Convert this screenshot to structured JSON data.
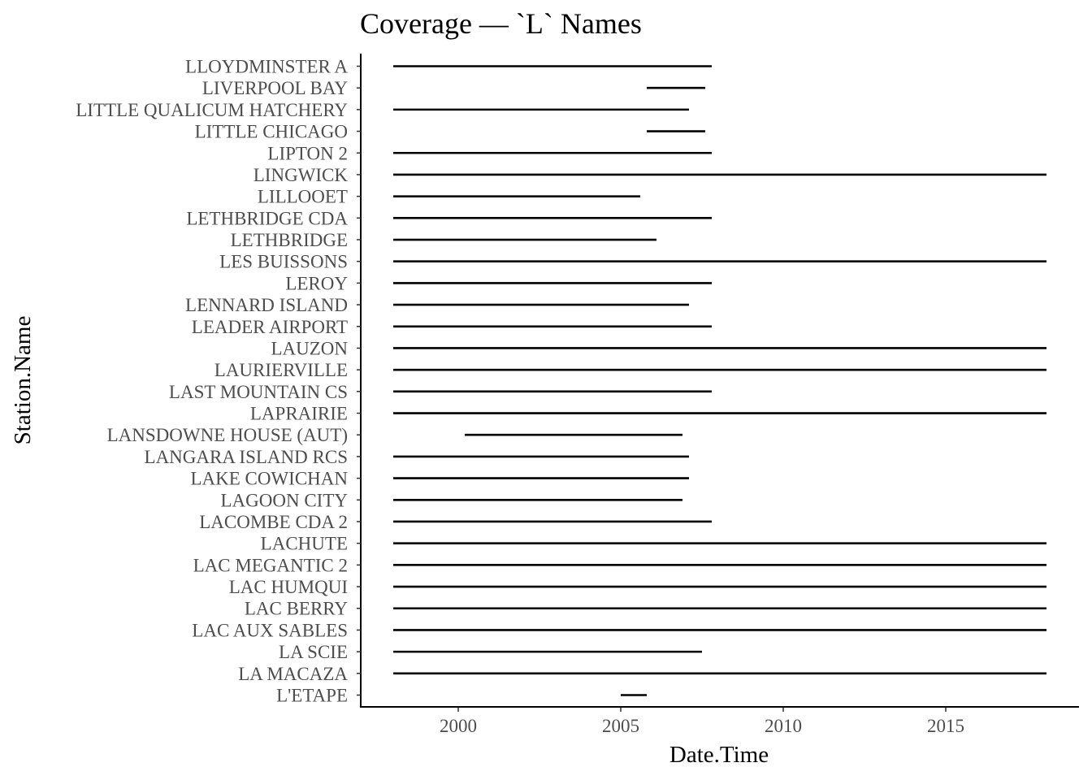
{
  "chart_data": {
    "type": "segment",
    "title": "Coverage — `L` Names",
    "xlabel": "Date.Time",
    "ylabel": "Station.Name",
    "x_ticks": [
      2000,
      2005,
      2010,
      2015
    ],
    "xlim": [
      1997.0,
      2019.1
    ],
    "grid": false,
    "legend": "none",
    "stations": [
      {
        "name": "LLOYDMINSTER A",
        "start": 1998.0,
        "end": 2007.8
      },
      {
        "name": "LIVERPOOL BAY",
        "start": 2005.8,
        "end": 2007.6
      },
      {
        "name": "LITTLE QUALICUM HATCHERY",
        "start": 1998.0,
        "end": 2007.1
      },
      {
        "name": "LITTLE CHICAGO",
        "start": 2005.8,
        "end": 2007.6
      },
      {
        "name": "LIPTON 2",
        "start": 1998.0,
        "end": 2007.8
      },
      {
        "name": "LINGWICK",
        "start": 1998.0,
        "end": 2018.1
      },
      {
        "name": "LILLOOET",
        "start": 1998.0,
        "end": 2005.6
      },
      {
        "name": "LETHBRIDGE CDA",
        "start": 1998.0,
        "end": 2007.8
      },
      {
        "name": "LETHBRIDGE",
        "start": 1998.0,
        "end": 2006.1
      },
      {
        "name": "LES BUISSONS",
        "start": 1998.0,
        "end": 2018.1
      },
      {
        "name": "LEROY",
        "start": 1998.0,
        "end": 2007.8
      },
      {
        "name": "LENNARD ISLAND",
        "start": 1998.0,
        "end": 2007.1
      },
      {
        "name": "LEADER AIRPORT",
        "start": 1998.0,
        "end": 2007.8
      },
      {
        "name": "LAUZON",
        "start": 1998.0,
        "end": 2018.1
      },
      {
        "name": "LAURIERVILLE",
        "start": 1998.0,
        "end": 2018.1
      },
      {
        "name": "LAST MOUNTAIN CS",
        "start": 1998.0,
        "end": 2007.8
      },
      {
        "name": "LAPRAIRIE",
        "start": 1998.0,
        "end": 2018.1
      },
      {
        "name": "LANSDOWNE HOUSE (AUT)",
        "start": 2000.2,
        "end": 2006.9
      },
      {
        "name": "LANGARA ISLAND RCS",
        "start": 1998.0,
        "end": 2007.1
      },
      {
        "name": "LAKE COWICHAN",
        "start": 1998.0,
        "end": 2007.1
      },
      {
        "name": "LAGOON CITY",
        "start": 1998.0,
        "end": 2006.9
      },
      {
        "name": "LACOMBE CDA 2",
        "start": 1998.0,
        "end": 2007.8
      },
      {
        "name": "LACHUTE",
        "start": 1998.0,
        "end": 2018.1
      },
      {
        "name": "LAC MEGANTIC 2",
        "start": 1998.0,
        "end": 2018.1
      },
      {
        "name": "LAC HUMQUI",
        "start": 1998.0,
        "end": 2018.1
      },
      {
        "name": "LAC BERRY",
        "start": 1998.0,
        "end": 2018.1
      },
      {
        "name": "LAC AUX SABLES",
        "start": 1998.0,
        "end": 2018.1
      },
      {
        "name": "LA SCIE",
        "start": 1998.0,
        "end": 2007.5
      },
      {
        "name": "LA MACAZA",
        "start": 1998.0,
        "end": 2018.1
      },
      {
        "name": "L'ETAPE",
        "start": 2005.0,
        "end": 2005.8
      }
    ]
  }
}
